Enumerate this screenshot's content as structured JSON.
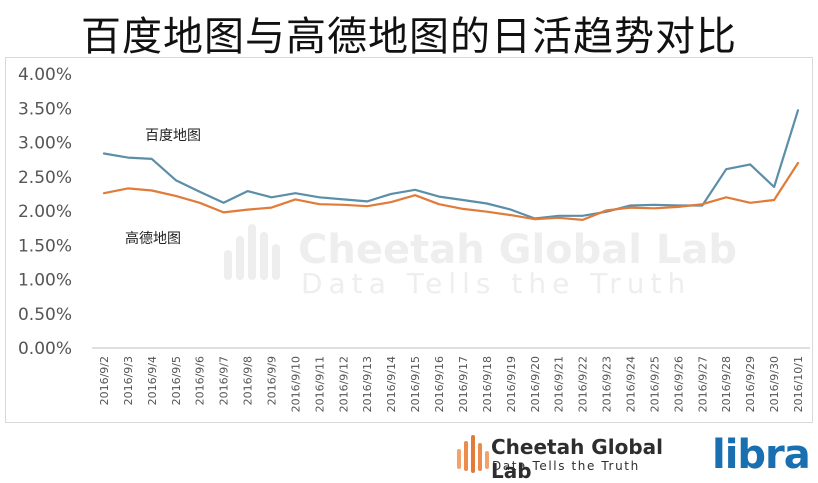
{
  "title": "百度地图与高德地图的日活趋势对比",
  "chart_data": {
    "type": "line",
    "title": "百度地图与高德地图的日活趋势对比",
    "x": [
      "2016/9/2",
      "2016/9/3",
      "2016/9/4",
      "2016/9/5",
      "2016/9/6",
      "2016/9/7",
      "2016/9/8",
      "2016/9/9",
      "2016/9/10",
      "2016/9/11",
      "2016/9/12",
      "2016/9/13",
      "2016/9/14",
      "2016/9/15",
      "2016/9/16",
      "2016/9/17",
      "2016/9/18",
      "2016/9/19",
      "2016/9/20",
      "2016/9/21",
      "2016/9/22",
      "2016/9/23",
      "2016/9/24",
      "2016/9/25",
      "2016/9/26",
      "2016/9/27",
      "2016/9/28",
      "2016/9/29",
      "2016/9/30",
      "2016/10/1"
    ],
    "yticks": [
      "0.00%",
      "0.50%",
      "1.00%",
      "1.50%",
      "2.00%",
      "2.50%",
      "3.00%",
      "3.50%",
      "4.00%"
    ],
    "ylim": [
      0,
      4.0
    ],
    "series": [
      {
        "name": "百度地图",
        "color": "#5b8fa8",
        "values": [
          2.84,
          2.78,
          2.76,
          2.45,
          2.28,
          2.12,
          2.29,
          2.2,
          2.26,
          2.2,
          2.17,
          2.14,
          2.25,
          2.31,
          2.21,
          2.16,
          2.11,
          2.02,
          1.89,
          1.93,
          1.93,
          1.99,
          2.08,
          2.09,
          2.08,
          2.08,
          2.61,
          2.68,
          2.35,
          3.47
        ]
      },
      {
        "name": "高德地图",
        "color": "#e07b39",
        "values": [
          2.26,
          2.33,
          2.3,
          2.22,
          2.12,
          1.98,
          2.02,
          2.05,
          2.17,
          2.1,
          2.09,
          2.07,
          2.13,
          2.23,
          2.1,
          2.03,
          1.99,
          1.94,
          1.88,
          1.9,
          1.87,
          2.01,
          2.05,
          2.04,
          2.06,
          2.1,
          2.2,
          2.12,
          2.16,
          2.7
        ]
      }
    ],
    "grid": false,
    "legend": "inline labels"
  },
  "watermark": {
    "title": "Cheetah Global Lab",
    "tagline": "Data Tells the Truth"
  },
  "footer": {
    "brand_name": "Cheetah Global Lab",
    "brand_tagline": "Data Tells the Truth",
    "partner_logo": "libra",
    "brand_color": "#e07b39",
    "partner_color": "#1a6fb0"
  }
}
